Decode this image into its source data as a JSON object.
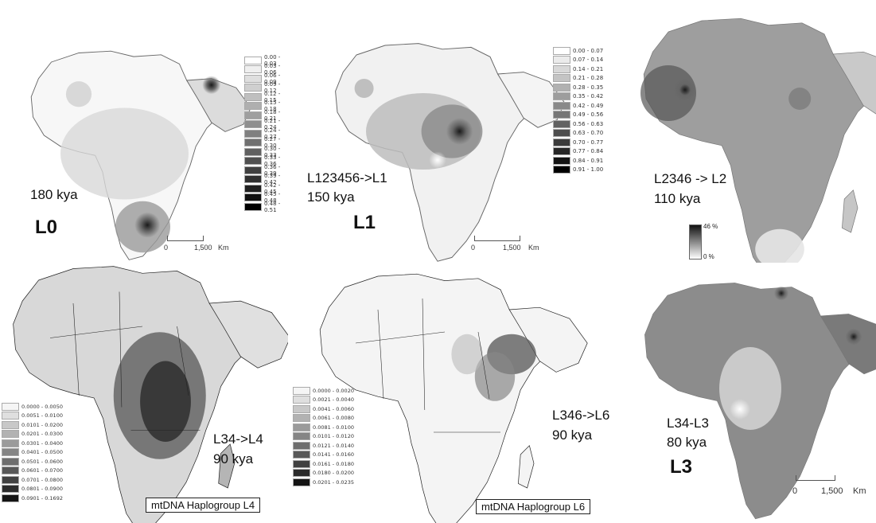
{
  "panels": {
    "L0": {
      "time": "180 kya",
      "big": "L0",
      "legend": [
        "0.00 - 0.03",
        "0.03 - 0.06",
        "0.06 - 0.09",
        "0.09 - 0.12",
        "0.12 - 0.15",
        "0.15 - 0.18",
        "0.18 - 0.21",
        "0.21 - 0.24",
        "0.24 - 0.27",
        "0.27 - 0.30",
        "0.30 - 0.33",
        "0.33 - 0.36",
        "0.36 - 0.39",
        "0.39 - 0.42",
        "0.42 - 0.45",
        "0.45 - 0.48",
        "0.48 - 0.51"
      ],
      "scale": [
        "0",
        "1,500",
        "Km"
      ]
    },
    "L1": {
      "transition": "L123456->L1",
      "time": "150 kya",
      "big": "L1",
      "legend": [
        "0.00 - 0.07",
        "0.07 - 0.14",
        "0.14 - 0.21",
        "0.21 - 0.28",
        "0.28 - 0.35",
        "0.35 - 0.42",
        "0.42 - 0.49",
        "0.49 - 0.56",
        "0.56 - 0.63",
        "0.63 - 0.70",
        "0.70 - 0.77",
        "0.77 - 0.84",
        "0.84 - 0.91",
        "0.91 - 1.00"
      ],
      "scale": [
        "0",
        "1,500",
        "Km"
      ]
    },
    "L2": {
      "transition": "L2346 -> L2",
      "time": "110 kya",
      "legend_max": "46 %",
      "legend_min": "0 %"
    },
    "L4": {
      "transition": "L34->L4",
      "time": "90 kya",
      "title": "mtDNA Haplogroup L4",
      "legend": [
        "0.0000 - 0.0050",
        "0.0051 - 0.0100",
        "0.0101 - 0.0200",
        "0.0201 - 0.0300",
        "0.0301 - 0.0400",
        "0.0401 - 0.0500",
        "0.0501 - 0.0600",
        "0.0601 - 0.0700",
        "0.0701 - 0.0800",
        "0.0801 - 0.0900",
        "0.0901 - 0.1692"
      ]
    },
    "L6": {
      "transition": "L346->L6",
      "time": "90 kya",
      "title": "mtDNA Haplogroup L6",
      "legend": [
        "0.0000 - 0.0020",
        "0.0021 - 0.0040",
        "0.0041 - 0.0060",
        "0.0061 - 0.0080",
        "0.0081 - 0.0100",
        "0.0101 - 0.0120",
        "0.0121 - 0.0140",
        "0.0141 - 0.0160",
        "0.0161 - 0.0180",
        "0.0180 - 0.0200",
        "0.0201 - 0.0235"
      ]
    },
    "L3": {
      "transition": "L34-L3",
      "time": "80 kya",
      "big": "L3",
      "scale": [
        "0",
        "1,500",
        "Km"
      ]
    }
  },
  "colors": {
    "map_light": "#f2f2f2",
    "map_mid": "#a8a8a8",
    "map_dark": "#1e1e1e",
    "border": "#222222"
  }
}
